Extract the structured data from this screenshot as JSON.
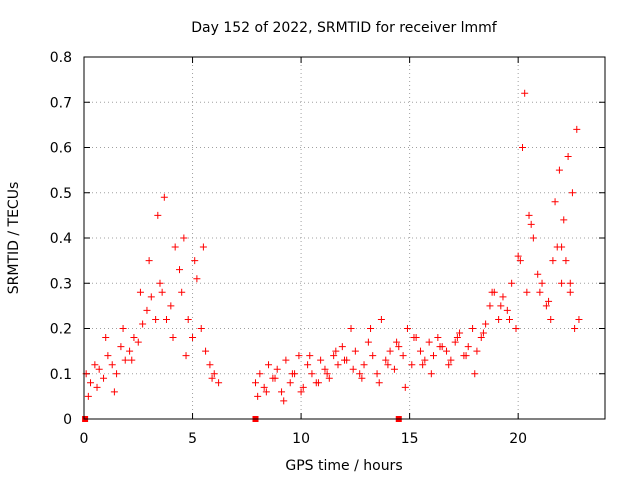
{
  "chart_data": {
    "type": "scatter",
    "title": "Day 152 of 2022, SRMTID for receiver lmmf",
    "xlabel": "GPS time / hours",
    "ylabel": "SRMTID / TECUs",
    "xlim": [
      0,
      24
    ],
    "ylim": [
      0,
      0.8
    ],
    "x_ticks": [
      0,
      5,
      10,
      15,
      20
    ],
    "x_tick_labels": [
      "0",
      "5",
      "10",
      "15",
      "20"
    ],
    "y_ticks": [
      0,
      0.1,
      0.2,
      0.3,
      0.4,
      0.5,
      0.6,
      0.7,
      0.8
    ],
    "y_tick_labels": [
      "0",
      "0.1",
      "0.2",
      "0.3",
      "0.4",
      "0.5",
      "0.6",
      "0.7",
      "0.8"
    ],
    "grid": true,
    "marker": "+",
    "color": "#ff0000",
    "gap_markers": [
      0.05,
      7.9,
      14.5
    ],
    "series": [
      {
        "name": "SRMTID",
        "x": [
          0.1,
          0.3,
          0.5,
          0.7,
          0.9,
          1.1,
          1.3,
          1.5,
          1.7,
          1.9,
          2.1,
          2.3,
          2.5,
          2.7,
          2.9,
          3.1,
          3.3,
          3.4,
          3.5,
          3.6,
          3.8,
          4.0,
          4.2,
          4.4,
          4.5,
          4.6,
          4.8,
          5.0,
          5.2,
          5.4,
          5.6,
          5.8,
          6.0,
          6.2,
          0.2,
          0.6,
          1.0,
          1.4,
          1.8,
          2.2,
          2.6,
          3.0,
          3.7,
          4.1,
          4.7,
          5.1,
          5.5,
          5.9,
          7.9,
          8.1,
          8.3,
          8.5,
          8.7,
          8.9,
          9.1,
          9.3,
          9.5,
          9.7,
          9.9,
          10.1,
          10.3,
          10.5,
          10.7,
          10.9,
          11.1,
          11.3,
          11.5,
          11.7,
          11.9,
          12.1,
          12.3,
          12.5,
          12.7,
          12.9,
          13.1,
          13.3,
          13.5,
          13.7,
          13.9,
          14.1,
          14.3,
          14.5,
          14.7,
          14.9,
          15.1,
          15.3,
          15.5,
          15.7,
          15.9,
          16.1,
          16.3,
          16.5,
          16.7,
          16.9,
          17.1,
          17.3,
          17.5,
          17.7,
          17.9,
          18.1,
          18.3,
          18.5,
          18.7,
          18.9,
          19.1,
          19.3,
          19.5,
          19.7,
          19.9,
          20.1,
          20.2,
          20.3,
          20.4,
          20.5,
          20.7,
          20.9,
          21.1,
          21.3,
          21.5,
          21.6,
          21.7,
          21.8,
          21.9,
          22.0,
          22.1,
          22.2,
          22.3,
          22.4,
          22.5,
          22.6,
          22.7,
          22.8,
          8.0,
          8.4,
          8.8,
          9.2,
          9.6,
          10.0,
          10.4,
          10.8,
          11.2,
          11.6,
          12.0,
          12.4,
          12.8,
          13.2,
          13.6,
          14.0,
          14.4,
          14.8,
          15.2,
          15.6,
          16.0,
          16.4,
          16.8,
          17.2,
          17.6,
          18.0,
          18.4,
          18.8,
          19.2,
          19.6,
          20.0,
          20.6,
          21.0,
          21.4,
          22.0,
          22.4
        ],
        "y": [
          0.1,
          0.08,
          0.12,
          0.11,
          0.09,
          0.14,
          0.12,
          0.1,
          0.16,
          0.13,
          0.15,
          0.18,
          0.17,
          0.21,
          0.24,
          0.27,
          0.22,
          0.45,
          0.3,
          0.28,
          0.22,
          0.25,
          0.38,
          0.33,
          0.28,
          0.4,
          0.22,
          0.18,
          0.31,
          0.2,
          0.15,
          0.12,
          0.1,
          0.08,
          0.05,
          0.07,
          0.18,
          0.06,
          0.2,
          0.13,
          0.28,
          0.35,
          0.49,
          0.18,
          0.14,
          0.35,
          0.38,
          0.09,
          0.08,
          0.1,
          0.07,
          0.12,
          0.09,
          0.11,
          0.06,
          0.13,
          0.08,
          0.1,
          0.14,
          0.07,
          0.12,
          0.1,
          0.08,
          0.13,
          0.11,
          0.09,
          0.14,
          0.12,
          0.16,
          0.13,
          0.2,
          0.15,
          0.1,
          0.12,
          0.17,
          0.14,
          0.1,
          0.22,
          0.13,
          0.15,
          0.11,
          0.16,
          0.14,
          0.2,
          0.12,
          0.18,
          0.15,
          0.13,
          0.17,
          0.14,
          0.18,
          0.16,
          0.15,
          0.13,
          0.17,
          0.19,
          0.14,
          0.16,
          0.2,
          0.15,
          0.18,
          0.21,
          0.25,
          0.28,
          0.22,
          0.27,
          0.24,
          0.3,
          0.2,
          0.35,
          0.6,
          0.72,
          0.28,
          0.45,
          0.4,
          0.32,
          0.3,
          0.25,
          0.22,
          0.35,
          0.48,
          0.38,
          0.55,
          0.3,
          0.44,
          0.35,
          0.58,
          0.28,
          0.5,
          0.2,
          0.64,
          0.22,
          0.05,
          0.06,
          0.09,
          0.04,
          0.1,
          0.06,
          0.14,
          0.08,
          0.1,
          0.15,
          0.13,
          0.11,
          0.09,
          0.2,
          0.08,
          0.12,
          0.17,
          0.07,
          0.18,
          0.12,
          0.1,
          0.16,
          0.12,
          0.18,
          0.14,
          0.1,
          0.19,
          0.28,
          0.25,
          0.22,
          0.36,
          0.43,
          0.28,
          0.26,
          0.38,
          0.3
        ]
      }
    ]
  }
}
